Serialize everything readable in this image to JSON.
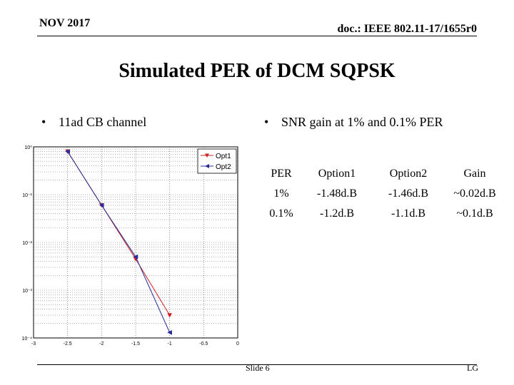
{
  "header": {
    "date": "NOV 2017",
    "doc_id": "doc.: IEEE 802.11-17/1655r0"
  },
  "title": "Simulated PER of DCM SQPSK",
  "bullets": {
    "left": "11ad CB channel",
    "right": "SNR gain at 1% and 0.1% PER",
    "marker": "•"
  },
  "table": {
    "headers": [
      "PER",
      "Option1",
      "Option2",
      "Gain"
    ],
    "rows": [
      [
        "1%",
        "-1.48d.B",
        "-1.46d.B",
        "~0.02d.B"
      ],
      [
        "0.1%",
        "-1.2d.B",
        "-1.1d.B",
        "~0.1d.B"
      ]
    ]
  },
  "footer": {
    "slide": "Slide 6",
    "author": "LG"
  },
  "chart_data": {
    "type": "line",
    "y_scale": "log",
    "xlim": [
      -3,
      0
    ],
    "ylim": [
      0.0001,
      1
    ],
    "grid": true,
    "legend_position": "top-right",
    "x_ticks": [
      "-3",
      "-2.5",
      "-2",
      "-1.5",
      "-1",
      "-0.5",
      "0"
    ],
    "x_tick_values": [
      -3,
      -2.5,
      -2,
      -1.5,
      -1,
      -0.5,
      0
    ],
    "y_tick_labels": [
      "10⁰",
      "10⁻¹",
      "10⁻²",
      "10⁻³",
      "10⁻⁴"
    ],
    "y_tick_values": [
      1,
      0.1,
      0.01,
      0.001,
      0.0001
    ],
    "series": [
      {
        "name": "Opt1",
        "color": "#cc2222",
        "marker": "triangle-down",
        "x": [
          -2.5,
          -2,
          -1.5,
          -1
        ],
        "y": [
          0.8,
          0.06,
          0.0045,
          0.0003
        ]
      },
      {
        "name": "Opt2",
        "color": "#2b2b99",
        "marker": "triangle-left",
        "x": [
          -2.5,
          -2,
          -1.5,
          -1
        ],
        "y": [
          0.8,
          0.06,
          0.005,
          0.00013
        ]
      }
    ]
  }
}
